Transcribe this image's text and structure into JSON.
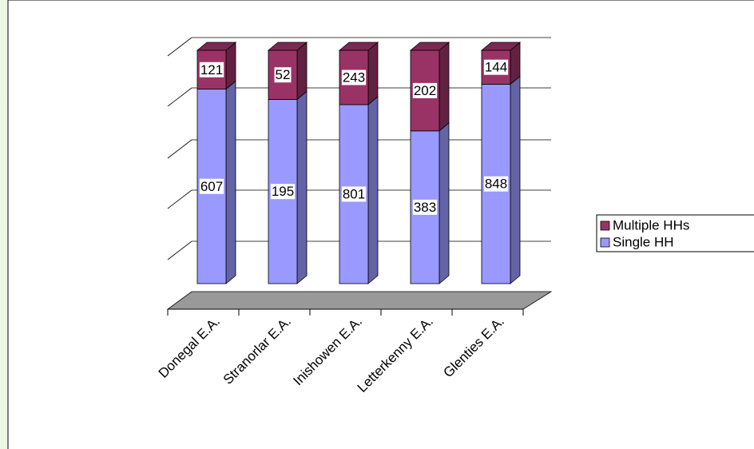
{
  "chart_data": {
    "type": "bar",
    "stacking": "percent",
    "categories": [
      "Donegal E.A.",
      "Stranorlar E.A.",
      "Inishowen E.A.",
      "Letterkenny E.A.",
      "Glenties E.A."
    ],
    "series": [
      {
        "name": "Single HH",
        "color": "#9999ff",
        "values": [
          607,
          195,
          801,
          383,
          848
        ]
      },
      {
        "name": "Multiple HHs",
        "color": "#993366",
        "values": [
          121,
          52,
          243,
          202,
          144
        ]
      }
    ],
    "legend": "right"
  }
}
